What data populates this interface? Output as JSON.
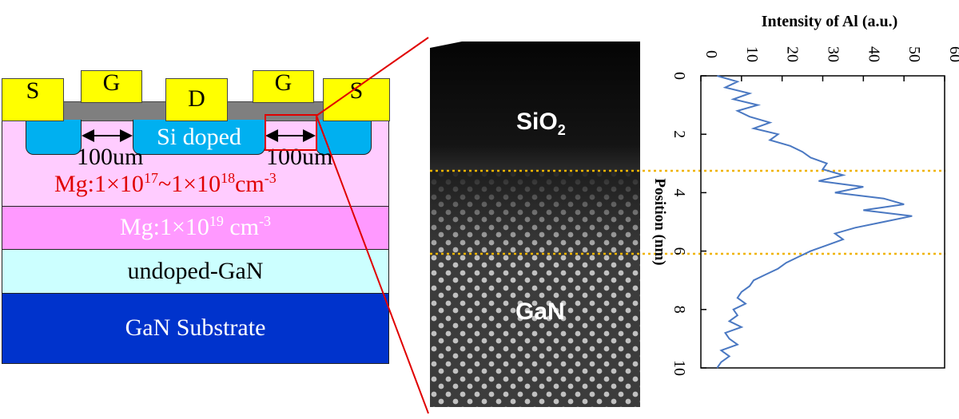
{
  "device": {
    "contacts": {
      "source_left": "S",
      "gate_left": "G",
      "drain": "D",
      "gate_right": "G",
      "source_right": "S"
    },
    "si_doped": "Si doped",
    "spacing_left": "100um",
    "spacing_right": "100um",
    "mg_layer_1": {
      "prefix": "Mg:1×10",
      "exp1": "17",
      "mid": "~1×10",
      "exp2": "18",
      "unit": "cm",
      "exp3": "-3"
    },
    "mg_layer_2": {
      "prefix": "Mg:1×10",
      "exp1": "19",
      "unit": "cm",
      "exp2": "-3"
    },
    "undoped_layer": "undoped-GaN",
    "substrate": "GaN Substrate",
    "colors": {
      "contact": "#ffff00",
      "oxide": "#7f7f7f",
      "si_doped": "#00b0f0",
      "mg_light": "#ffccff",
      "mg_heavy": "#ff99ff",
      "undoped": "#ccffff",
      "substrate": "#0033cc",
      "red": "#e00000",
      "marker": "#f0b400"
    }
  },
  "tem": {
    "top_label": "SiO",
    "top_sub": "2",
    "bottom_label": "GaN"
  },
  "chart_data": {
    "type": "line",
    "title": "Intensity of Al (a.u.)",
    "xlabel": "Intensity of Al (a.u.)",
    "ylabel": "Position (nm)",
    "xlim": [
      0,
      60
    ],
    "ylim": [
      0,
      10
    ],
    "x_ticks": [
      "0",
      "10",
      "20",
      "30",
      "40",
      "50",
      "60"
    ],
    "y_ticks": [
      "0",
      "2",
      "4",
      "6",
      "8",
      "10"
    ],
    "y_axis_inverted": true,
    "interface_positions_nm": [
      3.3,
      6.1
    ],
    "series": [
      {
        "color": "#4a78c2",
        "position": [
          0.0,
          0.2,
          0.4,
          0.6,
          0.8,
          1.0,
          1.2,
          1.4,
          1.6,
          1.8,
          2.0,
          2.2,
          2.4,
          2.6,
          2.8,
          3.0,
          3.2,
          3.4,
          3.6,
          3.8,
          4.0,
          4.2,
          4.4,
          4.6,
          4.8,
          5.0,
          5.2,
          5.4,
          5.6,
          5.8,
          6.0,
          6.2,
          6.4,
          6.6,
          6.8,
          7.0,
          7.2,
          7.4,
          7.6,
          7.8,
          8.0,
          8.2,
          8.4,
          8.6,
          8.8,
          9.0,
          9.2,
          9.4,
          9.6,
          9.8,
          10.0
        ],
        "intensity": [
          4,
          9,
          6,
          12,
          8,
          14,
          9,
          12,
          17,
          13,
          19,
          17,
          22,
          25,
          27,
          31,
          30,
          35,
          29,
          40,
          33,
          45,
          50,
          40,
          52,
          45,
          38,
          33,
          35,
          31,
          27,
          24,
          21,
          19,
          16,
          13,
          12,
          10,
          9,
          11,
          8,
          9,
          7,
          10,
          6,
          7,
          9,
          5,
          7,
          5,
          4
        ]
      }
    ]
  }
}
